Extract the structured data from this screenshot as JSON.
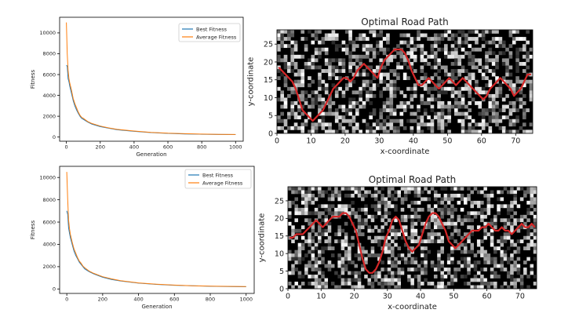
{
  "chart_data": [
    {
      "type": "line",
      "title": "",
      "xlabel": "Generation",
      "ylabel": "Fitness",
      "xlim": [
        -40,
        1045
      ],
      "ylim": [
        -400,
        11500
      ],
      "xticks": [
        0,
        200,
        400,
        600,
        800,
        1000
      ],
      "yticks": [
        0,
        2000,
        4000,
        6000,
        8000,
        10000
      ],
      "legend": "top-right",
      "grid": false,
      "series": [
        {
          "name": "Best Fitness",
          "color": "#1f77b4",
          "x": [
            0,
            5,
            10,
            15,
            20,
            30,
            40,
            50,
            60,
            70,
            80,
            90,
            100,
            125,
            150,
            200,
            250,
            300,
            400,
            500,
            600,
            700,
            800,
            900,
            1000
          ],
          "y": [
            6900,
            6800,
            5600,
            5300,
            4900,
            4200,
            3500,
            3000,
            2600,
            2300,
            2000,
            1800,
            1700,
            1450,
            1250,
            1000,
            850,
            700,
            550,
            430,
            350,
            300,
            270,
            250,
            240
          ]
        },
        {
          "name": "Average Fitness",
          "color": "#ff7f0e",
          "x": [
            0,
            5,
            10,
            15,
            20,
            30,
            40,
            50,
            60,
            70,
            80,
            90,
            100,
            125,
            150,
            200,
            250,
            300,
            400,
            500,
            600,
            700,
            800,
            900,
            1000
          ],
          "y": [
            11000,
            8000,
            6400,
            5600,
            5200,
            4500,
            3700,
            3200,
            2800,
            2400,
            2100,
            1900,
            1800,
            1500,
            1300,
            1050,
            880,
            740,
            580,
            450,
            370,
            320,
            285,
            265,
            250
          ]
        }
      ]
    },
    {
      "type": "heatmap",
      "title": "Optimal Road Path",
      "xlabel": "x-coordinate",
      "ylabel": "y-coordinate",
      "xlim": [
        0,
        75
      ],
      "ylim": [
        0,
        29
      ],
      "xticks": [
        0,
        10,
        20,
        30,
        40,
        50,
        60,
        70
      ],
      "yticks": [
        0,
        5,
        10,
        15,
        20,
        25
      ],
      "path_color": "#d62728",
      "path": {
        "x": [
          0,
          1,
          2,
          3,
          4,
          5,
          6,
          7,
          8,
          9,
          10,
          11,
          12,
          13,
          14,
          15,
          16,
          17,
          18,
          19,
          20,
          21,
          22,
          23,
          24,
          25,
          26,
          27,
          28,
          29,
          30,
          31,
          32,
          33,
          34,
          35,
          36,
          37,
          38,
          39,
          40,
          41,
          42,
          43,
          44,
          45,
          46,
          47,
          48,
          49,
          50,
          51,
          52,
          53,
          54,
          55,
          56,
          57,
          58,
          59,
          60,
          61,
          62,
          63,
          64,
          65,
          66,
          67,
          68,
          69,
          70,
          71,
          72,
          73,
          74
        ],
        "y": [
          18,
          17,
          16,
          15,
          14,
          12,
          9,
          6,
          5,
          4,
          3,
          4,
          5,
          6,
          8,
          10,
          12,
          13,
          14,
          15,
          15,
          14,
          15,
          17,
          18,
          19,
          18,
          17,
          16,
          15,
          18,
          20,
          21,
          22,
          23,
          23,
          23,
          22,
          20,
          17,
          15,
          13,
          13,
          14,
          15,
          14,
          13,
          12,
          13,
          14,
          15,
          14,
          13,
          14,
          15,
          14,
          13,
          12,
          11,
          10,
          9,
          10,
          12,
          13,
          14,
          15,
          14,
          13,
          12,
          10,
          11,
          12,
          14,
          16,
          16
        ]
      }
    },
    {
      "type": "line",
      "title": "",
      "xlabel": "Generation",
      "ylabel": "Fitness",
      "xlim": [
        -40,
        1045
      ],
      "ylim": [
        -400,
        11000
      ],
      "xticks": [
        0,
        200,
        400,
        600,
        800,
        1000
      ],
      "yticks": [
        0,
        2000,
        4000,
        6000,
        8000,
        10000
      ],
      "legend": "top-right",
      "grid": false,
      "series": [
        {
          "name": "Best Fitness",
          "color": "#1f77b4",
          "x": [
            0,
            5,
            10,
            15,
            20,
            30,
            40,
            50,
            60,
            70,
            80,
            90,
            100,
            125,
            150,
            200,
            250,
            300,
            400,
            500,
            600,
            700,
            800,
            900,
            1000
          ],
          "y": [
            7000,
            6700,
            5500,
            5000,
            4600,
            4000,
            3400,
            3000,
            2700,
            2400,
            2200,
            2000,
            1800,
            1550,
            1350,
            1050,
            850,
            720,
            520,
            410,
            330,
            280,
            240,
            220,
            200
          ]
        },
        {
          "name": "Average Fitness",
          "color": "#ff7f0e",
          "x": [
            0,
            5,
            10,
            15,
            20,
            30,
            40,
            50,
            60,
            70,
            80,
            90,
            100,
            125,
            150,
            200,
            250,
            300,
            400,
            500,
            600,
            700,
            800,
            900,
            1000
          ],
          "y": [
            10500,
            8000,
            6200,
            5400,
            4900,
            4200,
            3600,
            3200,
            2800,
            2500,
            2300,
            2050,
            1900,
            1600,
            1400,
            1100,
            900,
            750,
            540,
            430,
            345,
            290,
            250,
            230,
            210
          ]
        }
      ]
    },
    {
      "type": "heatmap",
      "title": "Optimal Road Path",
      "xlabel": "x-coordinate",
      "ylabel": "y-coordinate",
      "xlim": [
        0,
        75
      ],
      "ylim": [
        0,
        29
      ],
      "xticks": [
        0,
        10,
        20,
        30,
        40,
        50,
        60,
        70
      ],
      "yticks": [
        0,
        5,
        10,
        15,
        20,
        25
      ],
      "path_color": "#d62728",
      "path": {
        "x": [
          0,
          1,
          2,
          3,
          4,
          5,
          6,
          7,
          8,
          9,
          10,
          11,
          12,
          13,
          14,
          15,
          16,
          17,
          18,
          19,
          20,
          21,
          22,
          23,
          24,
          25,
          26,
          27,
          28,
          29,
          30,
          31,
          32,
          33,
          34,
          35,
          36,
          37,
          38,
          39,
          40,
          41,
          42,
          43,
          44,
          45,
          46,
          47,
          48,
          49,
          50,
          51,
          52,
          53,
          54,
          55,
          56,
          57,
          58,
          59,
          60,
          61,
          62,
          63,
          64,
          65,
          66,
          67,
          68,
          69,
          70,
          71,
          72,
          73,
          74
        ],
        "y": [
          14,
          14,
          15,
          15,
          15,
          16,
          17,
          18,
          19,
          18,
          17,
          18,
          19,
          20,
          20,
          20,
          21,
          21,
          20,
          18,
          16,
          12,
          8,
          5,
          4,
          4,
          5,
          7,
          10,
          14,
          16,
          19,
          20,
          19,
          16,
          13,
          11,
          10,
          11,
          12,
          15,
          18,
          20,
          21,
          21,
          20,
          18,
          16,
          13,
          12,
          11,
          12,
          13,
          14,
          15,
          16,
          16,
          16,
          17,
          17,
          18,
          17,
          16,
          16,
          17,
          16,
          16,
          15,
          16,
          17,
          18,
          17,
          17,
          18,
          17
        ]
      }
    }
  ]
}
